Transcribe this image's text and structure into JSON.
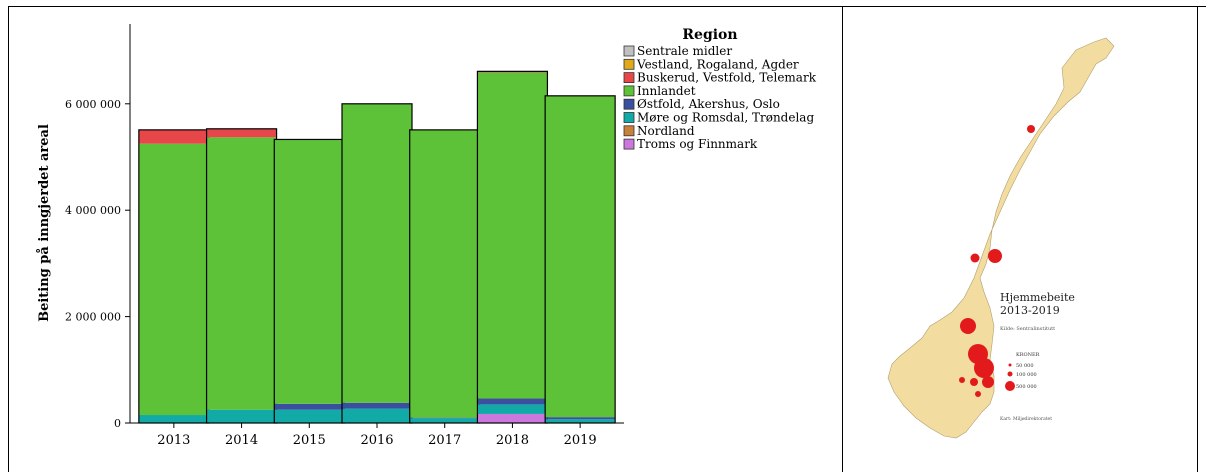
{
  "chart_data": {
    "type": "bar",
    "stacked": true,
    "title": "",
    "xlabel": "",
    "ylabel": "Beiting på inngjerdet areal",
    "ylim": [
      0,
      7500000
    ],
    "yticks": [
      0,
      2000000,
      4000000,
      6000000
    ],
    "ytick_labels": [
      "0",
      "2 000 000",
      "4 000 000",
      "6 000 000"
    ],
    "categories": [
      "2013",
      "2014",
      "2015",
      "2016",
      "2017",
      "2018",
      "2019"
    ],
    "legend_title": "Region",
    "legend_position": "top-right",
    "grid": false,
    "series": [
      {
        "name": "Troms og Finnmark",
        "color": "#cc77dd",
        "values": [
          0,
          0,
          0,
          0,
          0,
          170000,
          0
        ]
      },
      {
        "name": "Nordland",
        "color": "#c8803a",
        "values": [
          0,
          0,
          0,
          0,
          0,
          0,
          0
        ]
      },
      {
        "name": "Møre og Romsdal, Trøndelag",
        "color": "#12aaa6",
        "values": [
          150000,
          250000,
          250000,
          270000,
          90000,
          180000,
          70000
        ]
      },
      {
        "name": "Østfold, Akershus, Oslo",
        "color": "#3a4fa0",
        "values": [
          0,
          0,
          110000,
          110000,
          10000,
          110000,
          40000
        ]
      },
      {
        "name": "Innlandet",
        "color": "#5dc238",
        "values": [
          5100000,
          5120000,
          4970000,
          5620000,
          5400000,
          6130000,
          6030000
        ]
      },
      {
        "name": "Buskerud, Vestfold, Telemark",
        "color": "#e8474a",
        "values": [
          260000,
          160000,
          0,
          0,
          10000,
          20000,
          10000
        ]
      },
      {
        "name": "Vestland, Rogaland, Agder",
        "color": "#e0a81a",
        "values": [
          0,
          0,
          0,
          0,
          0,
          0,
          0
        ]
      },
      {
        "name": "Sentrale midler",
        "color": "#c0c0c0",
        "values": [
          0,
          0,
          0,
          0,
          0,
          0,
          0
        ]
      }
    ],
    "legend_order": [
      "Sentrale midler",
      "Vestland, Rogaland, Agder",
      "Buskerud, Vestfold, Telemark",
      "Innlandet",
      "Østfold, Akershus, Oslo",
      "Møre og Romsdal, Trøndelag",
      "Nordland",
      "Troms og Finnmark"
    ]
  },
  "map": {
    "title_line1": "Hjemmebeite",
    "title_line2": "2013-2019",
    "subtitle": "Kilde: Sentralinstitutt",
    "legend_heading": "KRONER",
    "legend_items": [
      "50 000",
      "100 000",
      "500 000"
    ],
    "footer": "Kart: Miljødirektoratet",
    "colors": {
      "land": "#f3dca0",
      "dot": "#e31a1c"
    }
  }
}
